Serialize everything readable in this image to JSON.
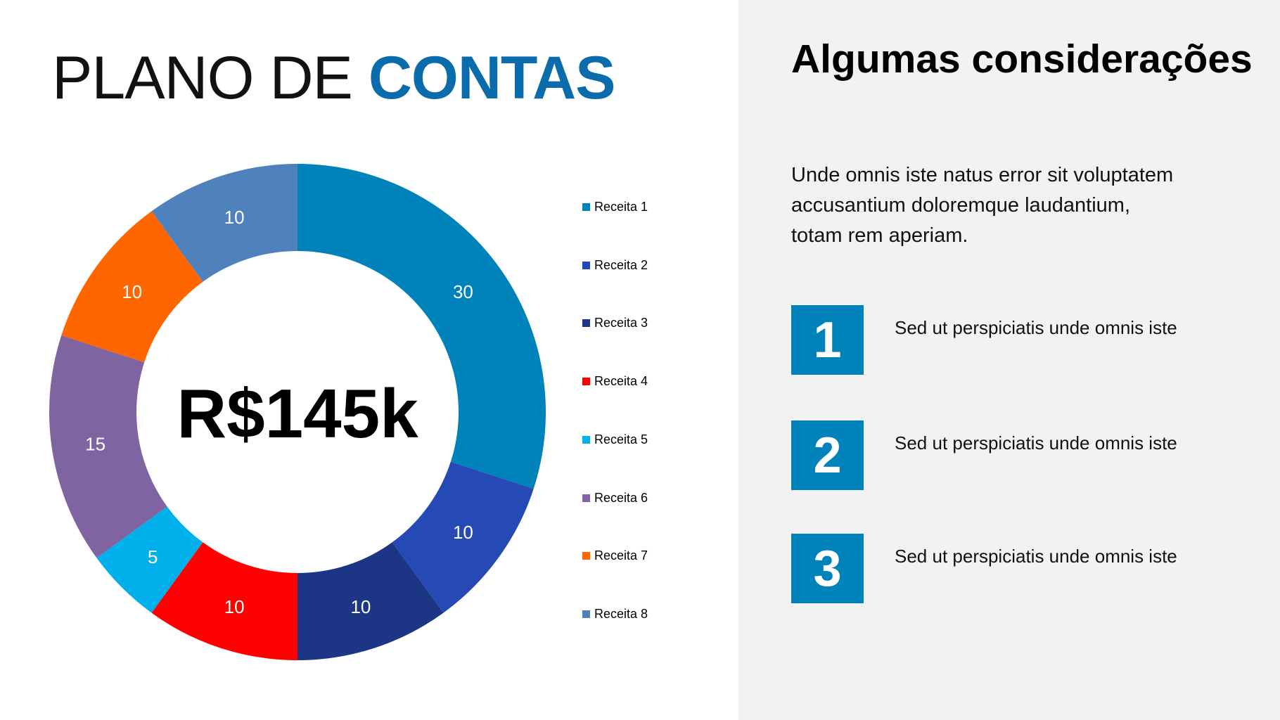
{
  "title": {
    "light": "PLANO DE ",
    "bold": "CONTAS"
  },
  "center_label": "R$145k",
  "chart_data": {
    "type": "pie",
    "variant": "donut",
    "categories": [
      "Receita 1",
      "Receita 2",
      "Receita 3",
      "Receita 4",
      "Receita 5",
      "Receita 6",
      "Receita 7",
      "Receita 8"
    ],
    "values": [
      30,
      10,
      10,
      10,
      5,
      15,
      10,
      10
    ],
    "colors": [
      "#0082ba",
      "#2549b5",
      "#1c3685",
      "#ff0000",
      "#00b0eb",
      "#8064a2",
      "#ff6600",
      "#4f81bd"
    ],
    "data_labels": [
      "30",
      "10",
      "10",
      "10",
      "5",
      "15",
      "10",
      "10"
    ],
    "legend_position": "right"
  },
  "panel": {
    "heading": "Algumas considerações",
    "paragraph": "Unde omnis iste natus error sit voluptatem accusantium doloremque laudantium, totam rem aperiam.",
    "items": [
      {
        "number": "1",
        "text": "Sed ut perspiciatis unde omnis iste"
      },
      {
        "number": "2",
        "text": "Sed ut perspiciatis unde omnis iste"
      },
      {
        "number": "3",
        "text": "Sed ut perspiciatis unde omnis iste"
      }
    ],
    "accent": "#0082ba"
  }
}
